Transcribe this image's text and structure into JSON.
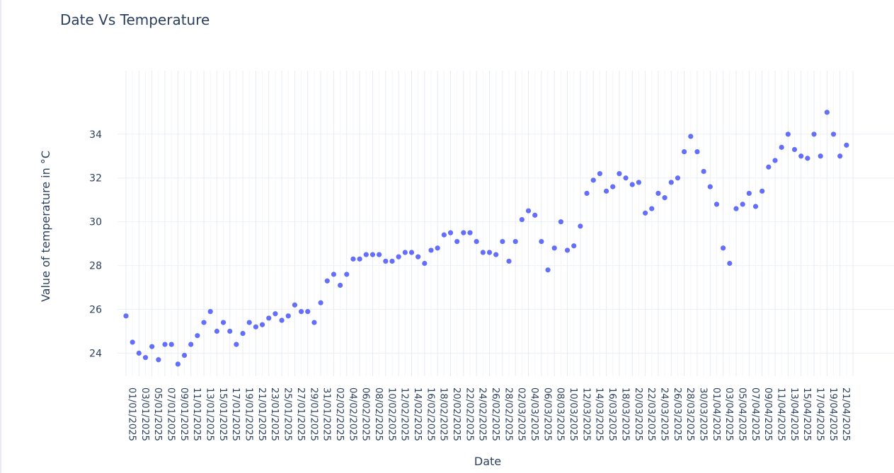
{
  "chart_data": {
    "type": "scatter",
    "title": "Date Vs Temperature",
    "xlabel": "Date",
    "ylabel": "Value of temperature in °C",
    "x_tick_labels": [
      "01/01/2025",
      "03/01/2025",
      "05/01/2025",
      "07/01/2025",
      "09/01/2025",
      "11/01/2025",
      "13/01/2025",
      "15/01/2025",
      "17/01/2025",
      "19/01/2025",
      "21/01/2025",
      "23/01/2025",
      "25/01/2025",
      "27/01/2025",
      "29/01/2025",
      "31/01/2025",
      "02/02/2025",
      "04/02/2025",
      "06/02/2025",
      "08/02/2025",
      "10/02/2025",
      "12/02/2025",
      "14/02/2025",
      "16/02/2025",
      "18/02/2025",
      "20/02/2025",
      "22/02/2025",
      "24/02/2025",
      "26/02/2025",
      "28/02/2025",
      "02/03/2025",
      "04/03/2025",
      "06/03/2025",
      "08/03/2025",
      "10/03/2025",
      "12/03/2025",
      "14/03/2025",
      "16/03/2025",
      "18/03/2025",
      "20/03/2025",
      "22/03/2025",
      "24/03/2025",
      "26/03/2025",
      "28/03/2025",
      "30/03/2025",
      "01/04/2025",
      "03/04/2025",
      "05/04/2025",
      "07/04/2025",
      "09/04/2025",
      "11/04/2025",
      "13/04/2025",
      "15/04/2025",
      "17/04/2025",
      "19/04/2025",
      "21/04/2025"
    ],
    "y_tick_labels": [
      "24",
      "26",
      "28",
      "30",
      "32",
      "34"
    ],
    "y_ticks": [
      24,
      26,
      28,
      30,
      32,
      34
    ],
    "ylim": [
      22.95,
      36.9
    ],
    "xlim": [
      "2025-01-01",
      "2025-04-23"
    ],
    "grid": true,
    "color": "#636efa",
    "x": [
      "2025-01-01",
      "2025-01-02",
      "2025-01-03",
      "2025-01-04",
      "2025-01-05",
      "2025-01-06",
      "2025-01-07",
      "2025-01-08",
      "2025-01-09",
      "2025-01-10",
      "2025-01-11",
      "2025-01-12",
      "2025-01-13",
      "2025-01-14",
      "2025-01-15",
      "2025-01-16",
      "2025-01-17",
      "2025-01-18",
      "2025-01-19",
      "2025-01-20",
      "2025-01-21",
      "2025-01-22",
      "2025-01-23",
      "2025-01-24",
      "2025-01-25",
      "2025-01-26",
      "2025-01-27",
      "2025-01-28",
      "2025-01-29",
      "2025-01-30",
      "2025-01-31",
      "2025-02-01",
      "2025-02-02",
      "2025-02-03",
      "2025-02-04",
      "2025-02-05",
      "2025-02-06",
      "2025-02-07",
      "2025-02-08",
      "2025-02-09",
      "2025-02-10",
      "2025-02-11",
      "2025-02-12",
      "2025-02-13",
      "2025-02-14",
      "2025-02-15",
      "2025-02-16",
      "2025-02-17",
      "2025-02-18",
      "2025-02-19",
      "2025-02-20",
      "2025-02-21",
      "2025-02-22",
      "2025-02-23",
      "2025-02-24",
      "2025-02-25",
      "2025-02-26",
      "2025-02-27",
      "2025-02-28",
      "2025-03-01",
      "2025-03-02",
      "2025-03-03",
      "2025-03-04",
      "2025-03-05",
      "2025-03-06",
      "2025-03-07",
      "2025-03-08",
      "2025-03-09",
      "2025-03-10",
      "2025-03-11",
      "2025-03-12",
      "2025-03-13",
      "2025-03-14",
      "2025-03-15",
      "2025-03-16",
      "2025-03-17",
      "2025-03-18",
      "2025-03-19",
      "2025-03-20",
      "2025-03-21",
      "2025-03-22",
      "2025-03-23",
      "2025-03-24",
      "2025-03-25",
      "2025-03-26",
      "2025-03-27",
      "2025-03-28",
      "2025-03-29",
      "2025-03-30",
      "2025-03-31",
      "2025-04-01",
      "2025-04-02",
      "2025-04-03",
      "2025-04-04",
      "2025-04-05",
      "2025-04-06",
      "2025-04-07",
      "2025-04-08",
      "2025-04-09",
      "2025-04-10",
      "2025-04-11",
      "2025-04-12",
      "2025-04-13",
      "2025-04-14",
      "2025-04-15",
      "2025-04-16",
      "2025-04-17",
      "2025-04-18",
      "2025-04-19",
      "2025-04-20",
      "2025-04-21",
      "2025-04-22"
    ],
    "y": [
      25.7,
      24.5,
      24.0,
      23.8,
      24.3,
      23.7,
      24.4,
      24.4,
      23.5,
      23.9,
      24.4,
      24.8,
      25.4,
      25.9,
      25.0,
      25.4,
      25.0,
      24.4,
      24.9,
      25.4,
      25.2,
      25.3,
      25.6,
      25.8,
      25.5,
      25.7,
      26.2,
      25.9,
      25.9,
      25.4,
      26.3,
      27.3,
      27.6,
      27.1,
      27.6,
      28.3,
      28.3,
      28.5,
      28.5,
      28.5,
      28.2,
      28.2,
      28.4,
      28.6,
      28.6,
      28.4,
      28.1,
      28.7,
      28.8,
      29.4,
      29.5,
      29.1,
      29.5,
      29.5,
      29.1,
      28.6,
      28.6,
      28.5,
      29.1,
      28.2,
      29.1,
      30.1,
      30.5,
      30.3,
      29.1,
      27.8,
      28.8,
      30.0,
      28.7,
      28.9,
      29.8,
      31.3,
      31.9,
      32.2,
      31.4,
      31.6,
      32.2,
      32.0,
      31.7,
      31.8,
      30.4,
      30.6,
      31.3,
      31.1,
      31.8,
      32.0,
      33.2,
      33.9,
      33.2,
      32.3,
      31.6,
      30.8,
      28.8,
      28.1,
      30.6,
      30.8,
      31.3,
      30.7,
      31.4,
      32.5,
      32.8,
      33.4,
      34.0,
      33.3,
      33.0,
      32.9,
      34.0,
      33.0,
      35.0,
      34.0,
      33.0,
      33.5
    ]
  }
}
